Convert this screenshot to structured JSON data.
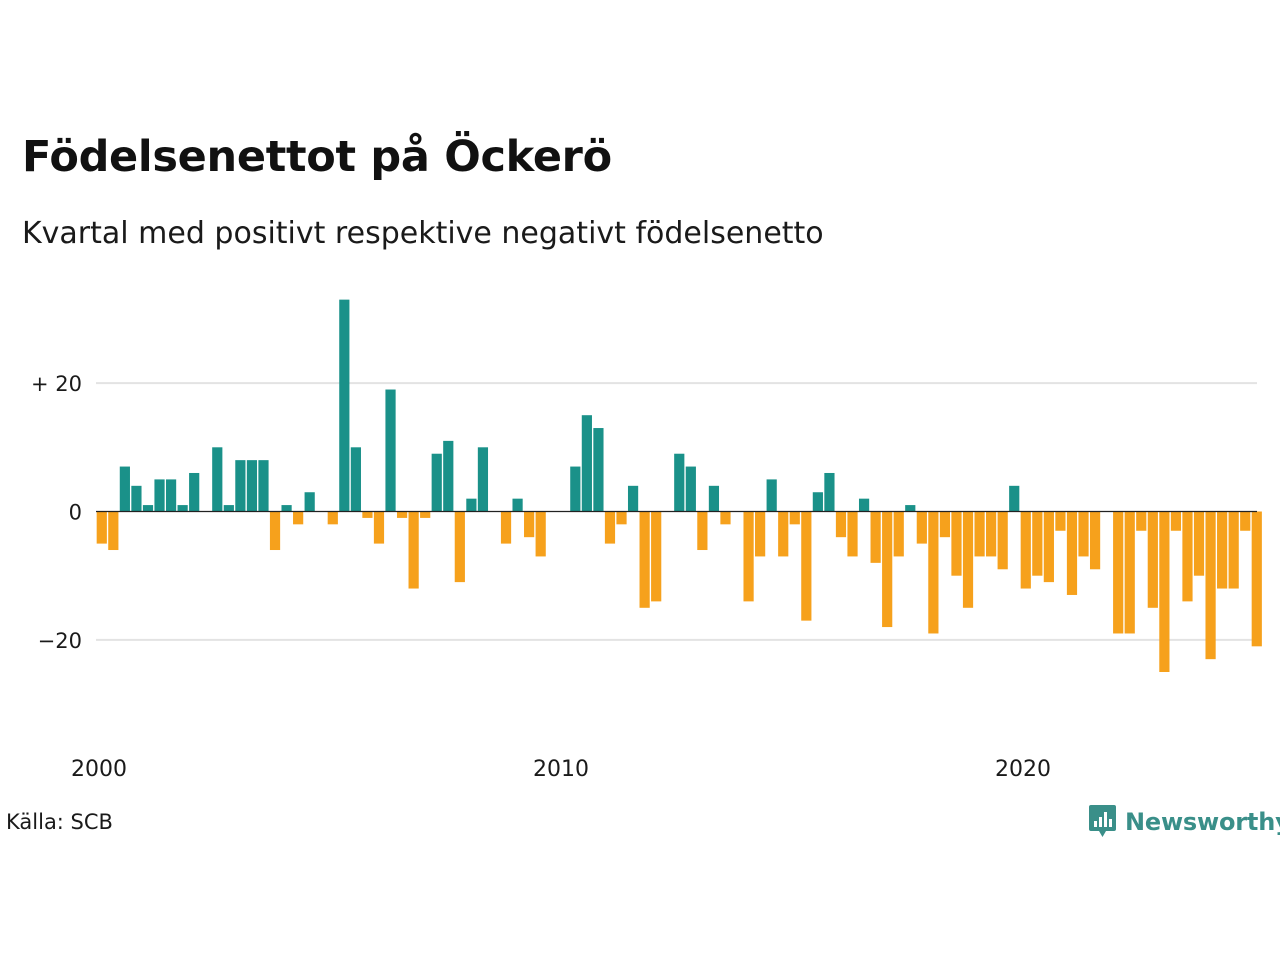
{
  "title": "Födelsenettot på Öckerö",
  "subtitle": "Kvartal med positivt respektive negativt födelsenetto",
  "source": "Källa: SCB",
  "brand": {
    "name": "Newsworthy",
    "icon": "newsworthy-logo-icon"
  },
  "colors": {
    "positive": "#1a9189",
    "negative": "#f6a11c",
    "grid": "#e3e3e3",
    "zero": "#222222"
  },
  "chart_data": {
    "type": "bar",
    "title": "Födelsenettot på Öckerö",
    "subtitle": "Kvartal med positivt respektive negativt födelsenetto",
    "start_year": 2000,
    "ylim": [
      -27,
      34
    ],
    "yticks": [
      {
        "value": 20,
        "label": "+ 20"
      },
      {
        "value": 0,
        "label": "0"
      },
      {
        "value": -20,
        "label": "−20"
      }
    ],
    "xticks": [
      {
        "value": 2000,
        "label": "2000"
      },
      {
        "value": 2010,
        "label": "2010"
      },
      {
        "value": 2020,
        "label": "2020"
      }
    ],
    "grid": true,
    "values": [
      -5,
      -6,
      7,
      4,
      1,
      5,
      5,
      1,
      6,
      0,
      10,
      1,
      8,
      8,
      8,
      -6,
      1,
      -2,
      3,
      0,
      -2,
      33,
      10,
      -1,
      -5,
      19,
      -1,
      -12,
      -1,
      9,
      11,
      -11,
      2,
      10,
      0,
      -5,
      2,
      -4,
      -7,
      0,
      0,
      7,
      15,
      13,
      -5,
      -2,
      4,
      -15,
      -14,
      0,
      9,
      7,
      -6,
      4,
      -2,
      0,
      -14,
      -7,
      5,
      -7,
      -2,
      -17,
      3,
      6,
      -4,
      -7,
      2,
      -8,
      -18,
      -7,
      1,
      -5,
      -19,
      -4,
      -10,
      -15,
      -7,
      -7,
      -9,
      4,
      -12,
      -10,
      -11,
      -3,
      -13,
      -7,
      -9,
      0,
      -19,
      -19,
      -3,
      -15,
      -25,
      -3,
      -14,
      -10,
      -23,
      -12,
      -12,
      -3,
      -21
    ]
  }
}
